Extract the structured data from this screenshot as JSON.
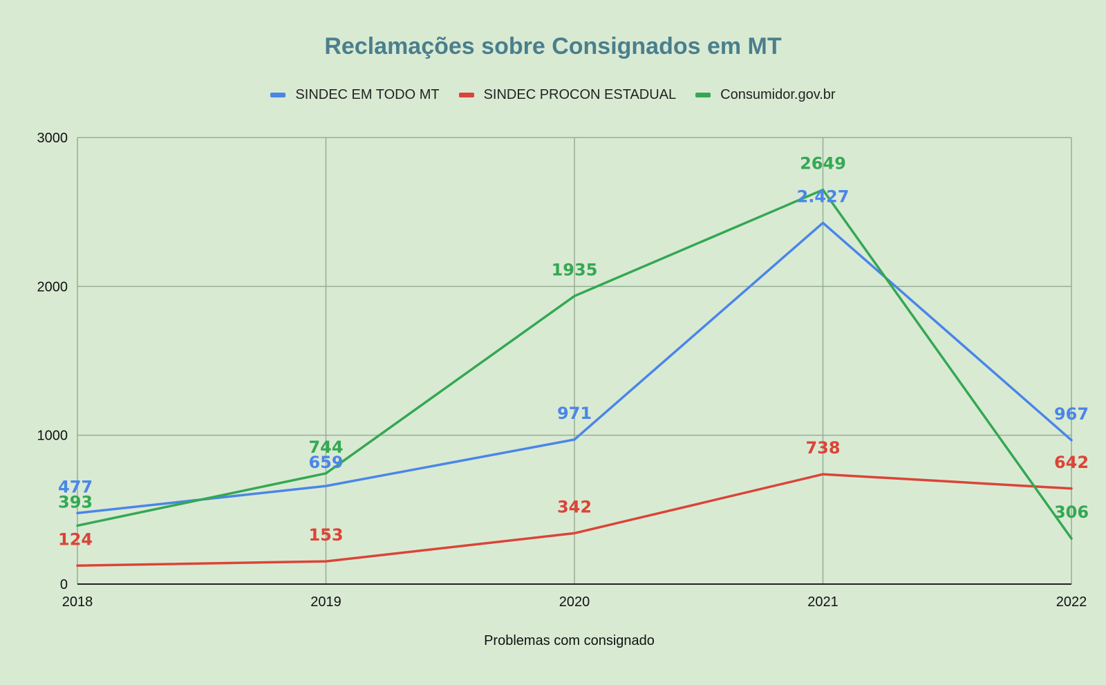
{
  "chart_data": {
    "type": "line",
    "title": "Reclamações sobre Consignados em MT",
    "xlabel": "Problemas com consignado",
    "ylabel": "",
    "x": [
      "2018",
      "2019",
      "2020",
      "2021",
      "2022"
    ],
    "ylim": [
      0,
      3000
    ],
    "yticks": [
      "0",
      "1000",
      "2000",
      "3000"
    ],
    "grid": true,
    "legend_position": "top",
    "series": [
      {
        "name": "SINDEC EM TODO MT",
        "color": "#4a86e8",
        "values": [
          477,
          659,
          971,
          2427,
          967
        ],
        "labels": [
          "477",
          "659",
          "971",
          "2.427",
          "967"
        ]
      },
      {
        "name": "SINDEC PROCON ESTADUAL",
        "color": "#db4437",
        "values": [
          124,
          153,
          342,
          738,
          642
        ],
        "labels": [
          "124",
          "153",
          "342",
          "738",
          "642"
        ]
      },
      {
        "name": "Consumidor.gov.br",
        "color": "#34a853",
        "values": [
          393,
          744,
          1935,
          2649,
          306
        ],
        "labels": [
          "393",
          "744",
          "1935",
          "2649",
          "306"
        ]
      }
    ]
  }
}
